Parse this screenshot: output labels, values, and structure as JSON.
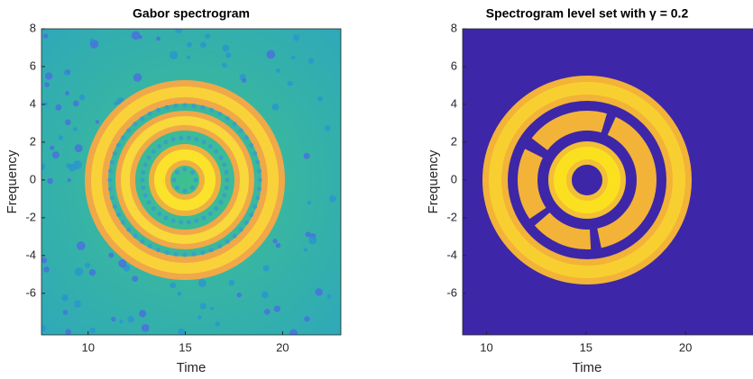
{
  "chart_data": [
    {
      "type": "heatmap",
      "title": "Gabor spectrogram",
      "xlabel": "Time",
      "ylabel": "Frequency",
      "xlim": [
        7.6,
        23.0
      ],
      "ylim": [
        -8.2,
        8
      ],
      "xticks": [
        10,
        15,
        20
      ],
      "yticks": [
        -6,
        -4,
        -2,
        0,
        2,
        4,
        6,
        8
      ]
    },
    {
      "type": "heatmap",
      "title": "Spectrogram level set with γ = 0.2",
      "xlabel": "Time",
      "ylabel": "Frequency",
      "xlim": [
        8.8,
        24.3
      ],
      "ylim": [
        -8.2,
        8
      ],
      "xticks": [
        10,
        15,
        20
      ],
      "yticks": [
        -6,
        -4,
        -2,
        0,
        2,
        4,
        6,
        8
      ]
    }
  ]
}
